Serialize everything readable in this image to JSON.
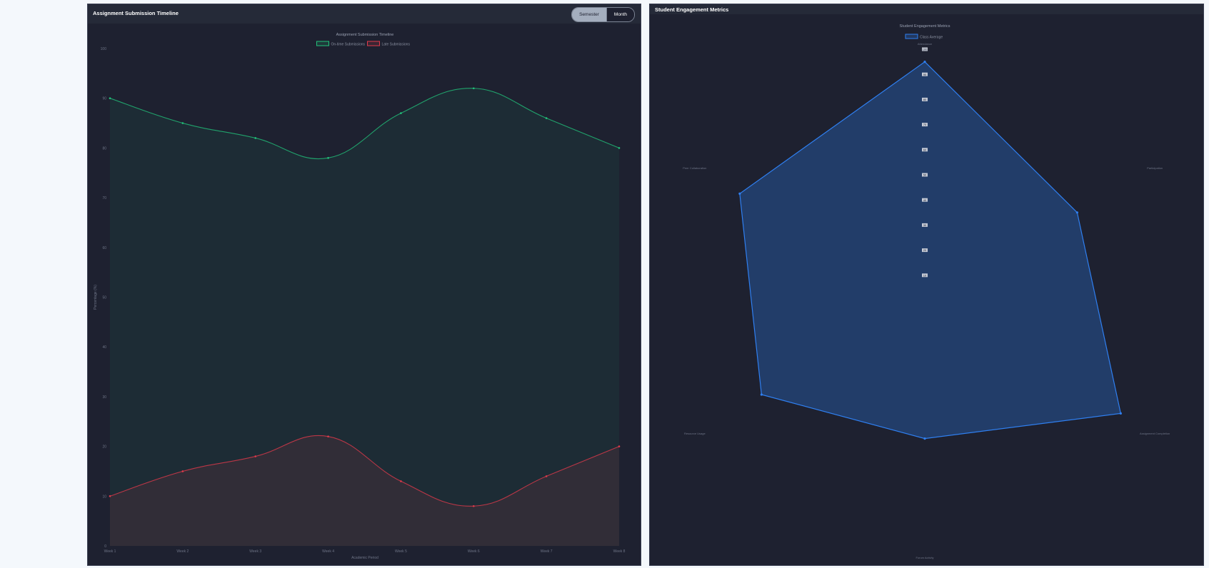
{
  "cards": {
    "timeline": {
      "title": "Assignment Submission Timeline",
      "toggle": {
        "semester_label": "Semester",
        "month_label": "Month",
        "active": "Semester"
      }
    },
    "engagement": {
      "title": "Student Engagement Metrics"
    }
  },
  "chart_data": [
    {
      "type": "area",
      "title": "Assignment Submission Timeline",
      "xlabel": "Academic Period",
      "ylabel": "Percentage (%)",
      "categories": [
        "Week 1",
        "Week 2",
        "Week 3",
        "Week 4",
        "Week 5",
        "Week 6",
        "Week 7",
        "Week 8"
      ],
      "ylim": [
        0,
        100
      ],
      "yticks": [
        "0",
        "10",
        "20",
        "30",
        "40",
        "50",
        "60",
        "70",
        "80",
        "90",
        "100"
      ],
      "legend_position": "top",
      "grid": false,
      "series": [
        {
          "name": "On-time Submissions",
          "values": [
            90,
            85,
            82,
            78,
            87,
            92,
            86,
            80
          ],
          "color": "#22c27a"
        },
        {
          "name": "Late Submissions",
          "values": [
            10,
            15,
            18,
            22,
            13,
            8,
            14,
            20
          ],
          "color": "#e03a4b"
        }
      ]
    },
    {
      "type": "radar",
      "title": "Student Engagement Metrics",
      "categories": [
        "Attendance",
        "Participation",
        "Assignment Completion",
        "Forum Activity",
        "Resource Usage",
        "Peer Collaboration"
      ],
      "rlim": [
        0,
        100
      ],
      "ticks": [
        "100",
        "90",
        "80",
        "70",
        "60",
        "50",
        "40",
        "30",
        "20",
        "10"
      ],
      "legend_position": "top",
      "series": [
        {
          "name": "Class Average",
          "values": [
            95,
            70,
            90,
            55,
            75,
            85
          ],
          "color": "#2f7ff0"
        }
      ]
    }
  ]
}
